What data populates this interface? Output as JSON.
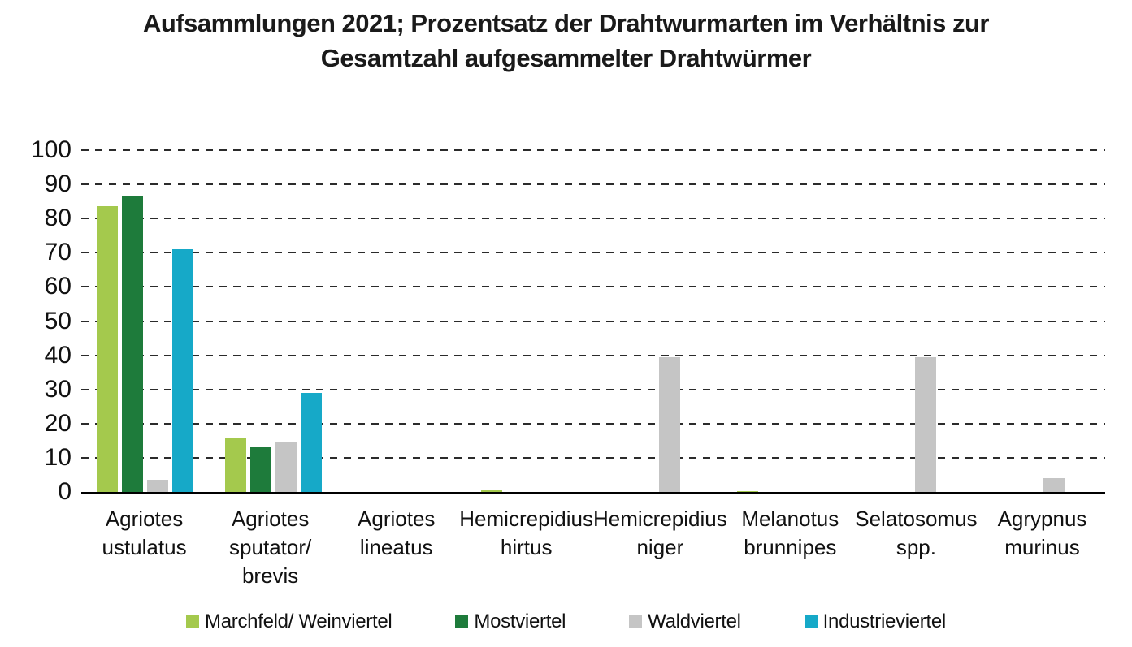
{
  "title": {
    "line1": "Aufsammlungen 2021; Prozentsatz der Drahtwurmarten im Verhältnis zur",
    "line2": "Gesamtzahl aufgesammelter Drahtwürmer"
  },
  "chart_data": {
    "type": "bar",
    "title": "Aufsammlungen 2021; Prozentsatz der Drahtwurmarten im Verhältnis zur Gesamtzahl aufgesammelter Drahtwürmer",
    "categories": [
      "Agriotes ustulatus",
      "Agriotes sputator/ brevis",
      "Agriotes lineatus",
      "Hemicrepidius hirtus",
      "Hemicrepidius niger",
      "Melanotus brunnipes",
      "Selatosomus spp.",
      "Agrypnus murinus"
    ],
    "series": [
      {
        "name": "Marchfeld/ Weinviertel",
        "color": "#a4c94d",
        "values": [
          83.5,
          16,
          0,
          0.7,
          0,
          0.3,
          0,
          0
        ]
      },
      {
        "name": "Mostviertel",
        "color": "#1e7b3b",
        "values": [
          86.5,
          13,
          0,
          0,
          0,
          0,
          0,
          0
        ]
      },
      {
        "name": "Waldviertel",
        "color": "#c5c5c5",
        "values": [
          3.5,
          14.5,
          0,
          0,
          39.5,
          0,
          39.5,
          4
        ]
      },
      {
        "name": "Industrieviertel",
        "color": "#16a9c8",
        "values": [
          71,
          29,
          0,
          0,
          0,
          0,
          0,
          0
        ]
      }
    ],
    "xlabel": "",
    "ylabel": "",
    "ylim": [
      0,
      100
    ],
    "ytick_step": 10,
    "yticks": [
      0,
      10,
      20,
      30,
      40,
      50,
      60,
      70,
      80,
      90,
      100
    ],
    "grid": "horizontal-dashed",
    "legend_position": "bottom"
  }
}
